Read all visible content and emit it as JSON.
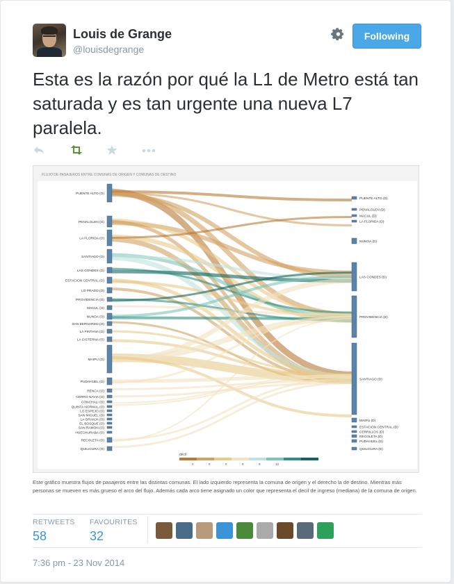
{
  "user": {
    "name": "Louis de Grange",
    "handle": "@louisdegrange",
    "follow_label": "Following"
  },
  "tweet": {
    "text": "Esta es la razón por qué la L1 de Metro está tan saturada y es tan urgente una nueva L7 paralela."
  },
  "actions": [
    "reply-icon",
    "retweet-icon",
    "favorite-icon",
    "more-icon"
  ],
  "chart": {
    "header": "FLUJO DE PASAJEROS ENTRE COMUNAS DE ORIGEN Y COMUNAS DE DESTINO",
    "left_nodes": [
      "PUENTE ALTO (O)",
      "PENALOLEN (O)",
      "LA FLORIDA (O)",
      "SANTIAGO (O)",
      "LAS CONDES (O)",
      "ESTACION CENTRAL (O)",
      "LO PRADO (O)",
      "PROVIDENCIA (O)",
      "MACUL (O)",
      "NUNOA (O)",
      "SAN BERNARDO (O)",
      "LA PINTANA (O)",
      "LA CISTERNA (O)",
      "MAIPU (O)",
      "PUDAHUEL (O)",
      "RENCA (O)",
      "CERRO NAVIA (O)",
      "CONCHALI (O)",
      "QUINTA NORMAL (O)",
      "LO ESPEJO (O)",
      "SAN MIGUEL (O)",
      "LA GRANJA (O)",
      "EL BOSQUE (O)",
      "SAN RAMON (O)",
      "HUECHURABA (O)",
      "RECOLETA (O)",
      "QUILICURA (O)"
    ],
    "right_nodes": [
      "PUENTE ALTO (D)",
      "PENALOLEN (D)",
      "MACUL (D)",
      "LA FLORIDA (D)",
      "NUNOA (D)",
      "LAS CONDES (D)",
      "PROVIDENCIA (D)",
      "SANTIAGO (D)",
      "MAIPU (D)",
      "ESTACION CENTRAL (D)",
      "CERRILLOS (D)",
      "RECOLETA (D)",
      "PUDAHUEL (D)",
      "QUILICURA (D)"
    ],
    "legend_title": "decil",
    "legend_ticks": [
      "4",
      "5",
      "5",
      "8",
      "9",
      "10"
    ],
    "legend_colors": [
      "#b87a35",
      "#d2a060",
      "#e8c98a",
      "#f2e3c0",
      "#bfe3dc",
      "#7cc4b8",
      "#2e8f80",
      "#10655c"
    ]
  },
  "caption": "Este gráfico muestra flujos de pasajeros entre las distintas comunas. El lado izquierdo representa la comuna de origen y el derecho la de destino. Mientras más personas se mueven es más grueso el arco del flujo. Además cada arco tiene asignado un color que representa el decil de ingreso (mediana) de la comuna de origen.",
  "stats": {
    "retweets_label": "RETWEETS",
    "retweets_value": "58",
    "favourites_label": "FAVOURITES",
    "favourites_value": "32"
  },
  "favoriters": [
    {
      "icon": "favoriter-avatar-1",
      "color": "#7a5a3a"
    },
    {
      "icon": "favoriter-avatar-2",
      "color": "#4a6a8a"
    },
    {
      "icon": "favoriter-avatar-3",
      "color": "#b89a7a"
    },
    {
      "icon": "favoriter-avatar-4",
      "color": "#3b94d9"
    },
    {
      "icon": "favoriter-avatar-5",
      "color": "#4a8a3a"
    },
    {
      "icon": "favoriter-avatar-6",
      "color": "#aaaaaa"
    },
    {
      "icon": "favoriter-avatar-7",
      "color": "#6a4a2a"
    },
    {
      "icon": "favoriter-avatar-8",
      "color": "#5a6a7a"
    },
    {
      "icon": "favoriter-avatar-9",
      "color": "#2ea05a"
    }
  ],
  "timestamp": "7:36 pm - 23 Nov 2014"
}
